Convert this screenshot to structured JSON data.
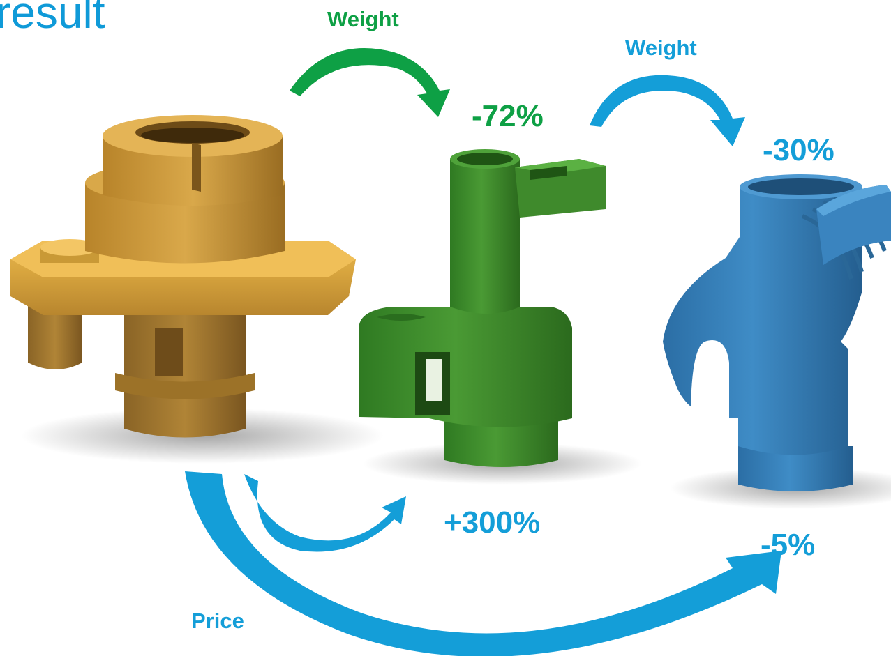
{
  "title": "result",
  "labels": {
    "weight_1": "Weight",
    "weight_1_value": "-72%",
    "weight_2": "Weight",
    "weight_2_value": "-30%",
    "price_label": "Price",
    "price_1_value": "+300%",
    "price_2_value": "-5%"
  },
  "colors": {
    "title": "#0f9ad8",
    "green": "#0ea045",
    "blue": "#149ed8",
    "brass": "#c49535",
    "green_part": "#3f8a2c",
    "blue_part": "#2f73a8"
  },
  "parts": [
    {
      "id": "brass-part",
      "material": "brass"
    },
    {
      "id": "green-part",
      "material": "green"
    },
    {
      "id": "blue-part",
      "material": "blue"
    }
  ]
}
